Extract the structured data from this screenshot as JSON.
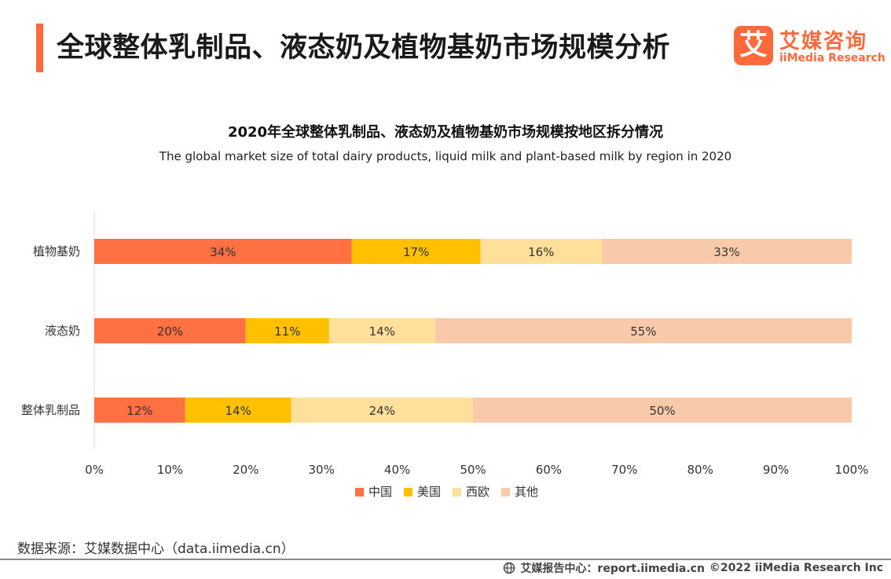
{
  "header": {
    "title": "全球整体乳制品、液态奶及植物基奶市场规模分析",
    "logo_mark": "艾",
    "logo_cn": "艾媒咨询",
    "logo_en": "iiMedia Research"
  },
  "colors": {
    "accent": "#ff6a3d",
    "china": "#ff7043",
    "usa": "#ffc000",
    "western_europe": "#ffe09a",
    "other": "#f8caa9"
  },
  "chart_data": {
    "type": "bar",
    "orientation": "horizontal",
    "stacked": "percent",
    "title": "2020年全球整体乳制品、液态奶及植物基奶市场规模按地区拆分情况",
    "subtitle": "The global market size of total dairy products, liquid milk and plant-based milk by region in 2020",
    "categories": [
      "植物基奶",
      "液态奶",
      "整体乳制品"
    ],
    "series": [
      {
        "name": "中国",
        "values": [
          34,
          20,
          12
        ],
        "labels": [
          "34%",
          "20%",
          "12%"
        ]
      },
      {
        "name": "美国",
        "values": [
          17,
          11,
          14
        ],
        "labels": [
          "17%",
          "11%",
          "14%"
        ]
      },
      {
        "name": "西欧",
        "values": [
          16,
          14,
          24
        ],
        "labels": [
          "16%",
          "14%",
          "24%"
        ]
      },
      {
        "name": "其他",
        "values": [
          33,
          55,
          50
        ],
        "labels": [
          "33%",
          "55%",
          "50%"
        ]
      }
    ],
    "xlim": [
      0,
      100
    ],
    "xticks": [
      "0%",
      "10%",
      "20%",
      "30%",
      "40%",
      "50%",
      "60%",
      "70%",
      "80%",
      "90%",
      "100%"
    ],
    "legend_position": "bottom-center",
    "grid": false
  },
  "footer": {
    "source": "数据来源：艾媒数据中心（data.iimedia.cn）",
    "report_center": "艾媒报告中心：report.iimedia.cn",
    "copyright": "©2022  iiMedia Research  Inc"
  }
}
